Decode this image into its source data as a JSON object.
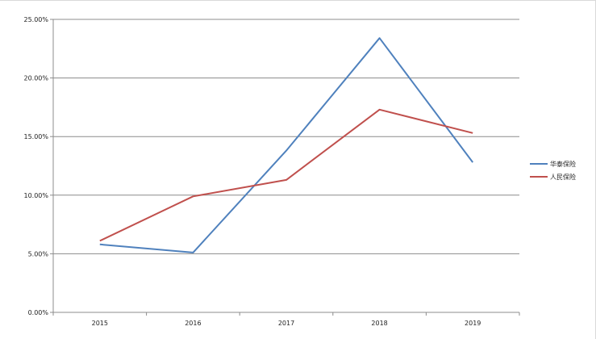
{
  "chart_data": {
    "type": "line",
    "title": "",
    "xlabel": "",
    "ylabel": "",
    "categories": [
      "2015",
      "2016",
      "2017",
      "2018",
      "2019"
    ],
    "ylim": [
      0,
      0.25
    ],
    "yticks": [
      "0.00%",
      "5.00%",
      "10.00%",
      "15.00%",
      "20.00%",
      "25.00%"
    ],
    "grid": true,
    "legend_position": "right",
    "series": [
      {
        "name": "华泰保险",
        "color": "#4f81bd",
        "values": [
          0.058,
          0.051,
          0.138,
          0.234,
          0.128
        ]
      },
      {
        "name": "人民保险",
        "color": "#c0504d",
        "values": [
          0.061,
          0.099,
          0.113,
          0.173,
          0.153
        ]
      }
    ]
  }
}
